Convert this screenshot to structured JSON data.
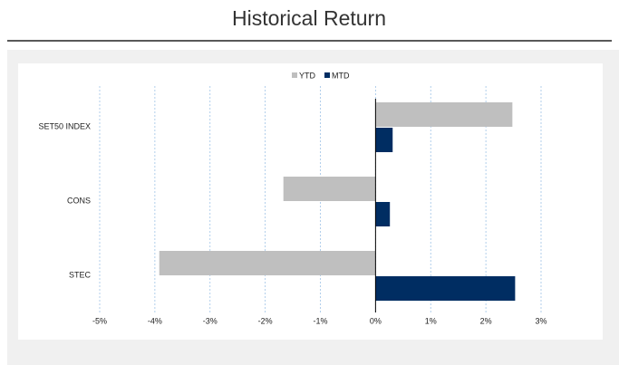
{
  "chart_data": {
    "type": "hbar",
    "title": "Historical Return",
    "categories": [
      "SET50 INDEX",
      "CONS",
      "STEC"
    ],
    "series": [
      {
        "name": "YTD",
        "color": "#bfbfbf",
        "values": [
          2.48,
          -1.67,
          -3.92
        ]
      },
      {
        "name": "MTD",
        "color": "#002d62",
        "values": [
          0.31,
          0.26,
          2.53
        ]
      }
    ],
    "xlim": [
      -5,
      3
    ],
    "xticks": [
      {
        "value": -5,
        "label": "-5%"
      },
      {
        "value": -4,
        "label": "-4%"
      },
      {
        "value": -3,
        "label": "-3%"
      },
      {
        "value": -2,
        "label": "-2%"
      },
      {
        "value": -1,
        "label": "-1%"
      },
      {
        "value": 0,
        "label": "0%"
      },
      {
        "value": 1,
        "label": "1%"
      },
      {
        "value": 2,
        "label": "2%"
      },
      {
        "value": 3,
        "label": "3%"
      }
    ],
    "grid": true,
    "legend": "top"
  }
}
